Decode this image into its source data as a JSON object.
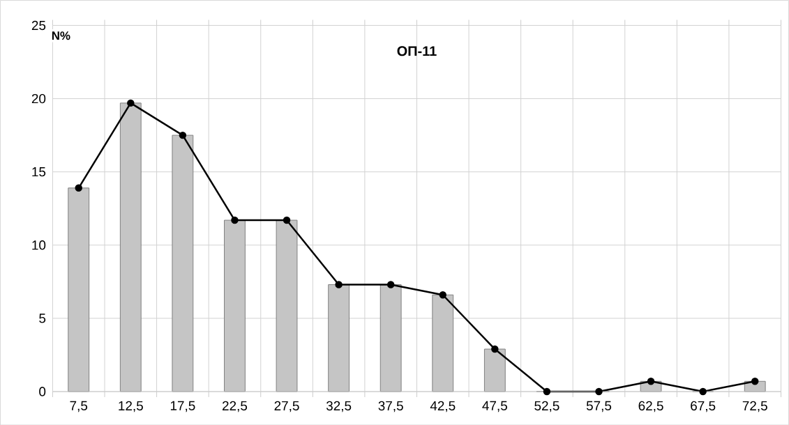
{
  "chart_data": {
    "type": "bar",
    "title": "ОП-11",
    "ylabel": "N%",
    "categories": [
      "7,5",
      "12,5",
      "17,5",
      "22,5",
      "27,5",
      "32,5",
      "37,5",
      "42,5",
      "47,5",
      "52,5",
      "57,5",
      "62,5",
      "67,5",
      "72,5"
    ],
    "series": [
      {
        "type": "bar",
        "color": "#7f7f7f",
        "values": [
          13.9,
          19.7,
          17.5,
          11.7,
          11.7,
          7.3,
          7.3,
          6.6,
          2.9,
          0,
          0,
          0.7,
          0,
          0.7
        ]
      },
      {
        "type": "line",
        "color": "#000000",
        "marker": "circle",
        "values": [
          13.9,
          19.7,
          17.5,
          11.7,
          11.7,
          7.3,
          7.3,
          6.6,
          2.9,
          0,
          0,
          0.7,
          0,
          0.7
        ]
      }
    ],
    "ylim": [
      0,
      25
    ],
    "yticks": [
      0,
      5,
      10,
      15,
      20,
      25
    ],
    "grid": true
  }
}
